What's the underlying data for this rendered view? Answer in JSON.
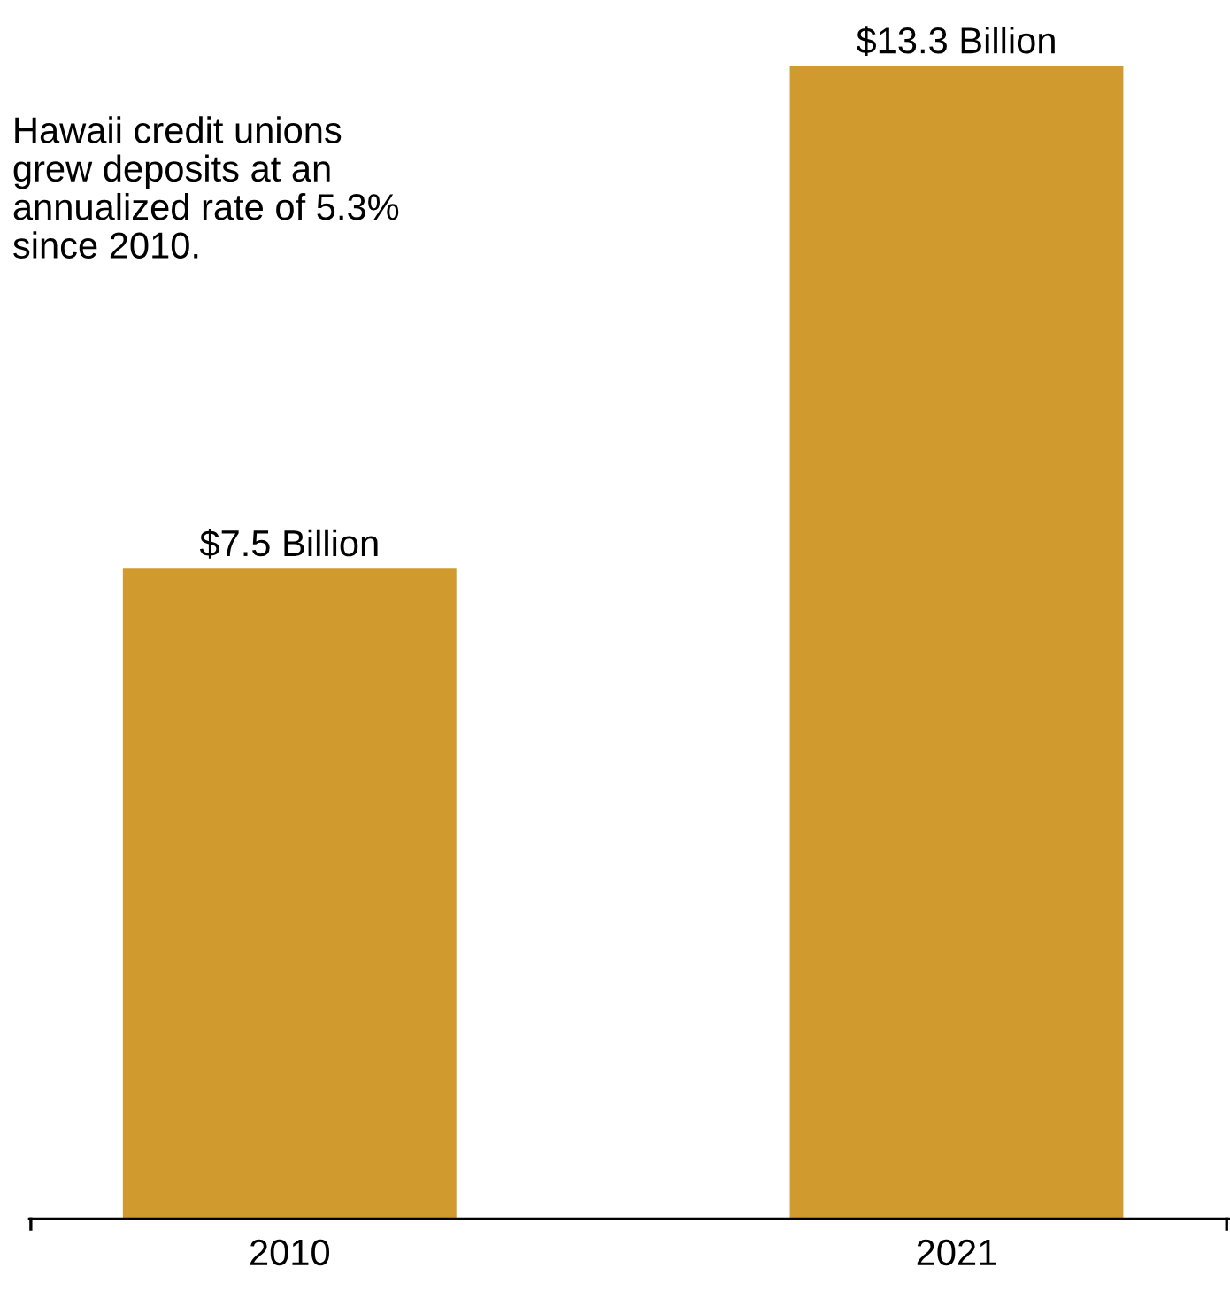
{
  "chart_data": {
    "type": "bar",
    "categories": [
      "2010",
      "2021"
    ],
    "values": [
      7.5,
      13.3
    ],
    "value_labels": [
      "$7.5 Billion",
      "$13.3 Billion"
    ],
    "color": "#d09a2e",
    "annotations": [
      "Hawaii credit unions\ngrew deposits at an\nannualized rate of 5.3%\nsince 2010."
    ],
    "grid": false,
    "legend": false
  }
}
